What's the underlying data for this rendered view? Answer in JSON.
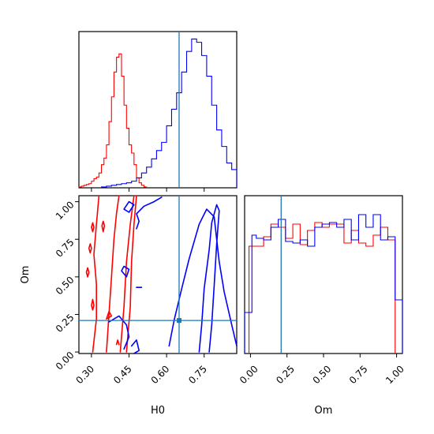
{
  "chart_data": {
    "type": "corner",
    "parameters": [
      "H0",
      "Om"
    ],
    "truth": {
      "H0": 0.65,
      "Om": 0.21
    },
    "colors": {
      "red": "#ff0000",
      "blue": "#0000ff",
      "truth": "#1f77b4"
    },
    "panels": {
      "h0_histogram": {
        "xlim": [
          0.25,
          0.88
        ],
        "ticks": [
          0.3,
          0.45,
          0.6,
          0.75
        ],
        "series": [
          {
            "color": "red",
            "bins": [
              0.25,
              0.26,
              0.27,
              0.28,
              0.29,
              0.3,
              0.31,
              0.32,
              0.33,
              0.34,
              0.35,
              0.36,
              0.37,
              0.38,
              0.39,
              0.4,
              0.41,
              0.42,
              0.43,
              0.44,
              0.45,
              0.46,
              0.47,
              0.48,
              0.49,
              0.5,
              0.51,
              0.52
            ],
            "counts": [
              1,
              2,
              3,
              4,
              5,
              8,
              11,
              13,
              18,
              28,
              36,
              52,
              80,
              110,
              140,
              158,
              162,
              135,
              100,
              72,
              52,
              42,
              28,
              12,
              6,
              3,
              1
            ]
          },
          {
            "color": "blue",
            "bins": [
              0.34,
              0.36,
              0.38,
              0.4,
              0.42,
              0.44,
              0.46,
              0.48,
              0.5,
              0.52,
              0.54,
              0.56,
              0.58,
              0.6,
              0.62,
              0.64,
              0.66,
              0.68,
              0.7,
              0.72,
              0.74,
              0.76,
              0.78,
              0.8,
              0.82,
              0.84,
              0.86,
              0.88
            ],
            "counts": [
              1,
              2,
              3,
              4,
              5,
              6,
              8,
              12,
              18,
              25,
              35,
              45,
              55,
              75,
              95,
              115,
              140,
              165,
              180,
              176,
              160,
              135,
              100,
              70,
              50,
              30,
              22
            ]
          }
        ]
      },
      "joint": {
        "xlim": [
          0.25,
          0.88
        ],
        "ylim": [
          -0.01,
          1.04
        ],
        "xticks": [
          "0.30",
          "0.45",
          "0.60",
          "0.75"
        ],
        "yticks": [
          "0.00",
          "0.25",
          "0.50",
          "0.75",
          "1.00"
        ],
        "xticks_values": [
          0.3,
          0.45,
          0.6,
          0.75
        ],
        "yticks_values": [
          0.0,
          0.25,
          0.5,
          0.75,
          1.0
        ],
        "xlabel": "H0",
        "ylabel": "Om",
        "contours": [
          {
            "color": "red",
            "points": [
              [
                0.305,
                0.0
              ],
              [
                0.32,
                0.22
              ],
              [
                0.32,
                0.45
              ],
              [
                0.31,
                0.65
              ],
              [
                0.32,
                0.85
              ],
              [
                0.33,
                1.04
              ]
            ]
          },
          {
            "color": "red",
            "points": [
              [
                0.36,
                0.0
              ],
              [
                0.37,
                0.25
              ],
              [
                0.38,
                0.5
              ],
              [
                0.39,
                0.75
              ],
              [
                0.4,
                0.92
              ],
              [
                0.41,
                1.04
              ]
            ]
          },
          {
            "color": "red",
            "points": [
              [
                0.415,
                0.0
              ],
              [
                0.43,
                0.3
              ],
              [
                0.44,
                0.6
              ],
              [
                0.455,
                0.85
              ],
              [
                0.47,
                1.04
              ]
            ]
          },
          {
            "color": "red",
            "points": [
              [
                0.44,
                0.0
              ],
              [
                0.455,
                0.3
              ],
              [
                0.46,
                0.6
              ],
              [
                0.47,
                0.85
              ],
              [
                0.48,
                1.04
              ]
            ]
          },
          {
            "color": "red",
            "points": [
              [
                0.4,
                0.05
              ],
              [
                0.405,
                0.08
              ],
              [
                0.41,
                0.05
              ]
            ]
          },
          {
            "color": "red",
            "points": [
              [
                0.36,
                0.22
              ],
              [
                0.38,
                0.24
              ],
              [
                0.37,
                0.27
              ],
              [
                0.36,
                0.22
              ]
            ]
          },
          {
            "color": "red",
            "points": [
              [
                0.347,
                0.8
              ],
              [
                0.352,
                0.84
              ],
              [
                0.347,
                0.87
              ],
              [
                0.342,
                0.84
              ],
              [
                0.347,
                0.8
              ]
            ]
          },
          {
            "color": "red",
            "points": [
              [
                0.305,
                0.8
              ],
              [
                0.31,
                0.83
              ],
              [
                0.305,
                0.86
              ],
              [
                0.3,
                0.83
              ],
              [
                0.305,
                0.8
              ]
            ]
          },
          {
            "color": "red",
            "points": [
              [
                0.285,
                0.5
              ],
              [
                0.29,
                0.53
              ],
              [
                0.285,
                0.56
              ],
              [
                0.28,
                0.53
              ],
              [
                0.285,
                0.5
              ]
            ]
          },
          {
            "color": "red",
            "points": [
              [
                0.305,
                0.28
              ],
              [
                0.31,
                0.31
              ],
              [
                0.305,
                0.35
              ],
              [
                0.3,
                0.31
              ],
              [
                0.305,
                0.28
              ]
            ]
          },
          {
            "color": "red",
            "points": [
              [
                0.295,
                0.66
              ],
              [
                0.3,
                0.69
              ],
              [
                0.295,
                0.72
              ],
              [
                0.29,
                0.69
              ],
              [
                0.295,
                0.66
              ]
            ]
          },
          {
            "color": "blue",
            "points": [
              [
                0.73,
                0.0
              ],
              [
                0.74,
                0.18
              ],
              [
                0.75,
                0.42
              ],
              [
                0.77,
                0.68
              ],
              [
                0.78,
                0.86
              ],
              [
                0.8,
                0.98
              ],
              [
                0.81,
                0.94
              ],
              [
                0.8,
                0.72
              ],
              [
                0.79,
                0.44
              ],
              [
                0.78,
                0.18
              ],
              [
                0.77,
                0.0
              ]
            ]
          },
          {
            "color": "blue",
            "points": [
              [
                0.61,
                0.04
              ],
              [
                0.63,
                0.21
              ],
              [
                0.66,
                0.42
              ],
              [
                0.69,
                0.62
              ],
              [
                0.73,
                0.85
              ],
              [
                0.76,
                0.95
              ],
              [
                0.79,
                0.9
              ],
              [
                0.81,
                0.6
              ],
              [
                0.83,
                0.4
              ],
              [
                0.86,
                0.18
              ],
              [
                0.88,
                0.04
              ]
            ]
          },
          {
            "color": "blue",
            "points": [
              [
                0.48,
                0.82
              ],
              [
                0.49,
                0.87
              ],
              [
                0.48,
                0.92
              ],
              [
                0.51,
                0.97
              ],
              [
                0.55,
                1.0
              ],
              [
                0.58,
                1.03
              ]
            ]
          },
          {
            "color": "blue",
            "points": [
              [
                0.42,
                0.54
              ],
              [
                0.43,
                0.57
              ],
              [
                0.45,
                0.55
              ],
              [
                0.44,
                0.5
              ],
              [
                0.42,
                0.54
              ]
            ]
          },
          {
            "color": "blue",
            "points": [
              [
                0.37,
                0.2
              ],
              [
                0.41,
                0.24
              ],
              [
                0.44,
                0.18
              ],
              [
                0.45,
                0.1
              ],
              [
                0.43,
                0.02
              ]
            ]
          },
          {
            "color": "blue",
            "points": [
              [
                0.46,
                0.04
              ],
              [
                0.48,
                0.08
              ],
              [
                0.49,
                0.01
              ],
              [
                0.47,
                -0.01
              ]
            ]
          },
          {
            "color": "blue",
            "points": [
              [
                0.43,
                0.95
              ],
              [
                0.45,
                1.0
              ],
              [
                0.47,
                0.98
              ],
              [
                0.45,
                0.93
              ],
              [
                0.43,
                0.95
              ]
            ]
          },
          {
            "color": "blue",
            "points": [
              [
                0.48,
                0.43
              ],
              [
                0.5,
                0.43
              ]
            ]
          }
        ],
        "truth_marker": {
          "x": 0.65,
          "y": 0.21
        }
      },
      "om_histogram": {
        "xlim": [
          -0.04,
          1.04
        ],
        "ylim": [
          0,
          1
        ],
        "xticks": [
          "0.00",
          "0.25",
          "0.50",
          "0.75",
          "1.00"
        ],
        "xticks_values": [
          0.0,
          0.25,
          0.5,
          0.75,
          1.0
        ],
        "xlabel": "Om",
        "series": [
          {
            "color": "red",
            "bins": [
              -0.01,
              0.04,
              0.09,
              0.14,
              0.19,
              0.24,
              0.29,
              0.34,
              0.39,
              0.44,
              0.49,
              0.54,
              0.59,
              0.64,
              0.69,
              0.74,
              0.79,
              0.84,
              0.89,
              0.94,
              0.99
            ],
            "counts": [
              0.68,
              0.68,
              0.74,
              0.82,
              0.8,
              0.73,
              0.82,
              0.69,
              0.78,
              0.83,
              0.8,
              0.82,
              0.82,
              0.7,
              0.78,
              0.7,
              0.68,
              0.75,
              0.8,
              0.72
            ]
          },
          {
            "color": "blue",
            "bins": [
              -0.04,
              0.01,
              0.04,
              0.09,
              0.14,
              0.19,
              0.24,
              0.29,
              0.34,
              0.39,
              0.44,
              0.49,
              0.54,
              0.59,
              0.64,
              0.69,
              0.74,
              0.79,
              0.84,
              0.89,
              0.94,
              0.99,
              1.04
            ],
            "counts": [
              0.26,
              0.75,
              0.73,
              0.72,
              0.8,
              0.85,
              0.71,
              0.7,
              0.72,
              0.68,
              0.8,
              0.82,
              0.83,
              0.8,
              0.85,
              0.72,
              0.88,
              0.8,
              0.88,
              0.72,
              0.74,
              0.34
            ]
          }
        ]
      }
    }
  }
}
